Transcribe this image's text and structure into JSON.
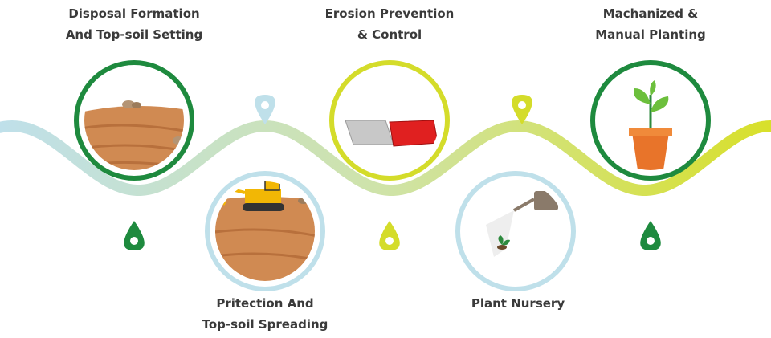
{
  "steps": [
    {
      "label": [
        "Disposal Formation",
        "And Top-soil Setting"
      ]
    },
    {
      "label": [
        "Pritection And",
        "Top-soil Spreading"
      ]
    },
    {
      "label": [
        "Erosion Prevention",
        "& Control"
      ]
    },
    {
      "label": [
        "Plant Nursery"
      ]
    },
    {
      "label": [
        "Machanized &",
        "Manual Planting"
      ]
    }
  ]
}
